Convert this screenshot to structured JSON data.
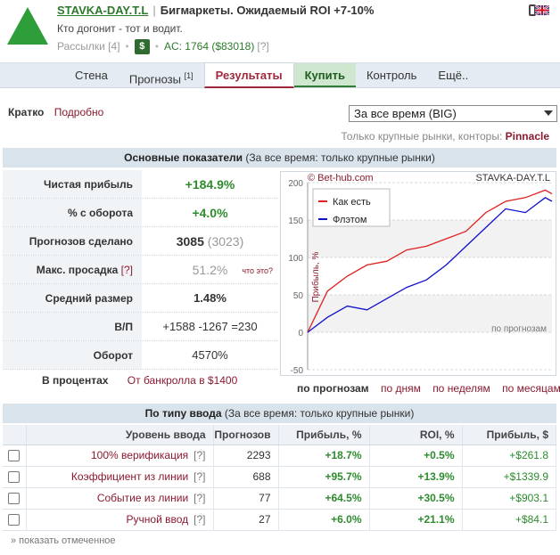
{
  "header": {
    "nick": "STAVKA-DAY.T.L",
    "separator": "|",
    "subtitle": "Бигмаркеты. Ожидаемый ROI +7-10%",
    "motto": "Кто догонит - тот и водит.",
    "mailings": "Рассылки [4]",
    "dollar_badge": "$",
    "ac": "AC: 1764 ($83018)",
    "ac_help": "[?]",
    "accent_green": "#2e8b2e",
    "accent_red": "#8b1a2e"
  },
  "tabs": [
    {
      "label": "Стена"
    },
    {
      "label": "Прогнозы",
      "sup": "[1]"
    },
    {
      "label": "Результаты"
    },
    {
      "label": "Купить"
    },
    {
      "label": "Контроль"
    },
    {
      "label": "Ещё.."
    }
  ],
  "subnav": {
    "short": "Кратко",
    "detailed": "Подробно"
  },
  "period_select": {
    "selected": "За все время (BIG)"
  },
  "books": {
    "prefix": "Только крупные рынки, конторы:",
    "name": "Pinnacle"
  },
  "main_section": {
    "title": "Основные показатели",
    "note": "(За все время: только крупные рынки)"
  },
  "stats": [
    {
      "label": "Чистая прибыль",
      "value": "+184.9%"
    },
    {
      "label": "% с оборота",
      "value": "+4.0%"
    },
    {
      "label": "Прогнозов сделано",
      "value": "3085",
      "extra": "(3023)"
    },
    {
      "label": "Макс. просадка",
      "help": "[?]",
      "value": "51.2%",
      "what": "что это?"
    },
    {
      "label": "Средний размер",
      "value": "1.48%"
    },
    {
      "label": "В/П",
      "value": "+1588 -1267 =230"
    },
    {
      "label": "Оборот",
      "value": "4570%"
    }
  ],
  "percents": {
    "label": "В процентах",
    "link": "От банкролла в $1400"
  },
  "chart": {
    "copyright": "© Bet-hub.com",
    "nick": "STAVKA-DAY.T.L",
    "legend": [
      "Как есть",
      "Флэтом"
    ],
    "ylabel": "Прибыль, %",
    "xnote": "по прогнозам",
    "colors": {
      "as_is": "#e02020",
      "flat": "#1010cc"
    }
  },
  "chart_data": {
    "type": "line",
    "title": "",
    "xlabel": "по прогнозам",
    "ylabel": "Прибыль, %",
    "ylim": [
      -50,
      200
    ],
    "yticks": [
      -50,
      0,
      50,
      100,
      150,
      200
    ],
    "grid": true,
    "legend_position": "top-left",
    "x": [
      0,
      250,
      500,
      750,
      1000,
      1250,
      1500,
      1750,
      2000,
      2250,
      2500,
      2750,
      3000,
      3085
    ],
    "series": [
      {
        "name": "Как есть",
        "values": [
          0,
          55,
          75,
          90,
          95,
          110,
          115,
          125,
          135,
          160,
          175,
          180,
          190,
          185
        ]
      },
      {
        "name": "Флэтом",
        "values": [
          0,
          20,
          35,
          30,
          45,
          60,
          70,
          90,
          115,
          140,
          165,
          160,
          180,
          175
        ]
      }
    ]
  },
  "chart_modes": {
    "active": "по прогнозам",
    "days": "по дням",
    "weeks": "по неделям",
    "months": "по месяцам"
  },
  "type_section": {
    "title": "По типу ввода",
    "note": "(За все время: только крупные рынки)"
  },
  "type_table": {
    "headers": [
      "Уровень ввода",
      "Прогнозов",
      "Прибыль, %",
      "ROI, %",
      "Прибыль, $"
    ],
    "rows": [
      {
        "type": "100% верификация",
        "q": "[?]",
        "count": "2293",
        "profit": "+18.7%",
        "roi": "+0.5%",
        "usd": "+$261.8"
      },
      {
        "type": "Коэффициент из линии",
        "q": "[?]",
        "count": "688",
        "profit": "+95.7%",
        "roi": "+13.9%",
        "usd": "+$1339.9"
      },
      {
        "type": "Событие из линии",
        "q": "[?]",
        "count": "77",
        "profit": "+64.5%",
        "roi": "+30.5%",
        "usd": "+$903.1"
      },
      {
        "type": "Ручной ввод",
        "q": "[?]",
        "count": "27",
        "profit": "+6.0%",
        "roi": "+21.1%",
        "usd": "+$84.1"
      }
    ]
  },
  "show_selected": "» показать отмеченное"
}
